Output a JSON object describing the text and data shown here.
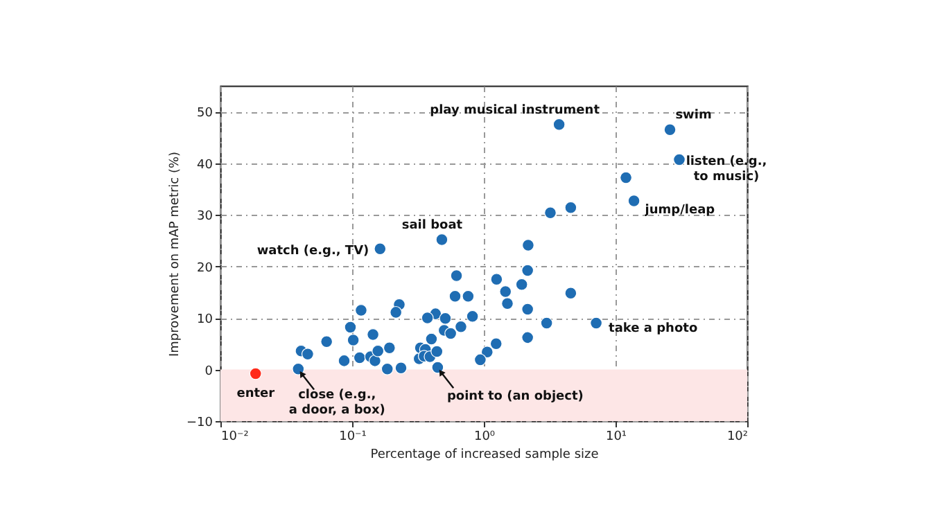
{
  "chart_data": {
    "type": "scatter",
    "xlabel": "Percentage of increased sample size",
    "ylabel": "Improvement on mAP metric (%)",
    "log": "x",
    "xlim": [
      0.01,
      100
    ],
    "ylim": [
      -10,
      55
    ],
    "xticks": [
      {
        "value": 0.01,
        "label": "10⁻²"
      },
      {
        "value": 0.1,
        "label": "10⁻¹"
      },
      {
        "value": 1,
        "label": "10⁰"
      },
      {
        "value": 10,
        "label": "10¹"
      },
      {
        "value": 100,
        "label": "10²"
      }
    ],
    "yticks": [
      -10,
      0,
      10,
      20,
      30,
      40,
      50
    ],
    "grid": true,
    "marker": "circle",
    "bands": [
      {
        "axis": "y",
        "from": -10,
        "to": 0,
        "color": "#fde6e6"
      }
    ],
    "series": [
      {
        "color": "#1f6db3",
        "x": [
          3.73,
          25.9,
          30.5,
          12.0,
          13.8,
          3.2,
          4.57,
          0.48,
          2.17,
          0.163,
          0.62,
          2.15,
          1.25,
          1.94,
          1.46,
          1.51,
          4.57,
          0.605,
          0.76,
          2.15,
          0.117,
          0.228,
          0.215,
          0.43,
          0.373,
          0.51,
          0.82,
          3.0,
          7.13,
          2.15,
          0.67,
          0.5,
          0.56,
          0.4,
          1.24,
          1.06,
          0.94,
          0.097,
          0.102,
          0.144,
          0.064,
          0.041,
          0.046,
          0.039,
          0.087,
          0.114,
          0.138,
          0.149,
          0.157,
          0.192,
          0.185,
          0.235,
          0.323,
          0.33,
          0.36,
          0.352,
          0.39,
          0.44,
          0.446
        ],
        "values": [
          47.5,
          46.5,
          40.7,
          37.2,
          32.7,
          30.4,
          31.4,
          25.2,
          24.1,
          23.4,
          18.2,
          19.2,
          17.5,
          16.5,
          15.1,
          12.8,
          14.8,
          14.2,
          14.2,
          11.7,
          11.5,
          12.6,
          11.1,
          10.8,
          10.0,
          9.9,
          10.3,
          9.0,
          9.0,
          6.2,
          8.3,
          7.6,
          7.0,
          5.9,
          5.0,
          3.4,
          1.9,
          8.2,
          5.7,
          6.8,
          5.4,
          3.6,
          3.0,
          0.1,
          1.7,
          2.3,
          2.5,
          1.7,
          3.6,
          4.2,
          0.1,
          0.3,
          2.1,
          4.2,
          3.9,
          2.6,
          2.5,
          3.5,
          0.4
        ]
      },
      {
        "color": "#ff2a1a",
        "x": [
          0.0185
        ],
        "values": [
          -0.8
        ]
      }
    ],
    "annotations": [
      {
        "text": "play musical instrument",
        "x": 3.73,
        "y": 47.5
      },
      {
        "text": "swim",
        "x": 25.9,
        "y": 46.5
      },
      {
        "text": "listen (e.g.,\nto music)",
        "x": 30.5,
        "y": 40.7
      },
      {
        "text": "jump/leap",
        "x": 13.8,
        "y": 32.7
      },
      {
        "text": "sail boat",
        "x": 0.48,
        "y": 25.2
      },
      {
        "text": "watch (e.g., TV)",
        "x": 0.163,
        "y": 23.4
      },
      {
        "text": "take a photo",
        "x": 7.13,
        "y": 9.0
      },
      {
        "text": "close (e.g.,\na door, a box)",
        "x": 0.039,
        "y": 0.1
      },
      {
        "text": "point to (an object)",
        "x": 0.446,
        "y": 0.4
      },
      {
        "text": "enter",
        "x": 0.0185,
        "y": -0.8
      }
    ]
  }
}
